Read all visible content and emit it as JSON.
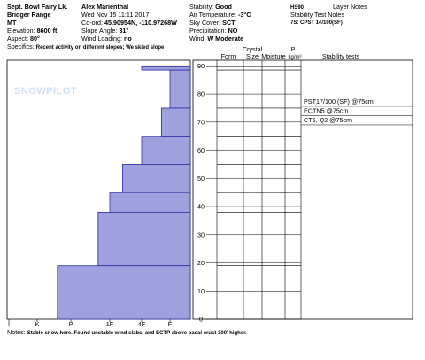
{
  "header": {
    "site": "Sept. Bowl Fairy Lk.",
    "range": "Bridger Range",
    "state": "MT",
    "elevation": {
      "label": "Elevation:",
      "value": "8600 ft"
    },
    "aspect": {
      "label": "Aspect:",
      "value": "80°"
    },
    "specifics": {
      "label": "Specifics:",
      "value": "Recent activity on different slopes; We skied slope"
    },
    "observer": "Alex Marienthal",
    "datetime": "Wed Nov 15 11:11 2017",
    "coord": {
      "label": "Co-ord:",
      "value": "45.90954N, -110.97268W"
    },
    "slope_angle": {
      "label": "Slope Angle:",
      "value": "31°"
    },
    "wind_loading": {
      "label": "Wind Loading:",
      "value": "no"
    },
    "stability": {
      "label": "Stability:",
      "value": "Good"
    },
    "air_temp": {
      "label": "Air Temperature:",
      "value": "-3°C"
    },
    "sky": {
      "label": "Sky Cover:",
      "value": "SCT"
    },
    "precip": {
      "label": "Precipitation:",
      "value": "NO"
    },
    "wind": {
      "label": "Wind:",
      "value": "W Moderate"
    },
    "hs": "HS90",
    "stability_notes_title": "Stability Test Notes",
    "stability_notes": "7S: CPST 14/100(SF)",
    "layer_notes_title": "Layer Notes",
    "watermark": "SNOWPILOT"
  },
  "chart_data": {
    "type": "hardness-profile",
    "layers": [
      {
        "top": 90,
        "bottom": 88.5,
        "hardness": 2
      },
      {
        "top": 88.5,
        "bottom": 75,
        "hardness": 1
      },
      {
        "top": 75,
        "bottom": 65,
        "hardness": 1.3
      },
      {
        "top": 65,
        "bottom": 55,
        "hardness": 2
      },
      {
        "top": 55,
        "bottom": 45,
        "hardness": 2.6
      },
      {
        "top": 45,
        "bottom": 38,
        "hardness": 3
      },
      {
        "top": 38,
        "bottom": 19,
        "hardness": 3.3
      },
      {
        "top": 19,
        "bottom": 0,
        "hardness": 4.4
      }
    ],
    "color": "#9fa0de",
    "edge_color": "#2c2ca8",
    "xlim": [
      0,
      6
    ],
    "xticks": [
      {
        "value": 6,
        "label": "I"
      },
      {
        "value": 5,
        "label": "K"
      },
      {
        "value": 4,
        "label": "P"
      },
      {
        "value": 3,
        "label": "1F"
      },
      {
        "value": 2,
        "label": "4F"
      },
      {
        "value": 1,
        "label": "F"
      }
    ],
    "ylim": [
      0,
      92
    ],
    "yticks": [
      0,
      10,
      20,
      30,
      40,
      50,
      60,
      70,
      80,
      90
    ],
    "columns": {
      "crystal": "Crystal",
      "form": "Form",
      "size": "Size",
      "moisture": "Moisture",
      "p": "P",
      "density": "kg/m³",
      "tests": "Stability tests"
    },
    "stability_tests": [
      "PST17/100 (SF) @75cm",
      "ECTN5 @75cm",
      "CT5, Q2 @75cm"
    ]
  },
  "notes": {
    "label": "Notes:",
    "value": "Stable snow here. Found unstable wind slabs, and ECTP above basal crust 300' higher."
  }
}
